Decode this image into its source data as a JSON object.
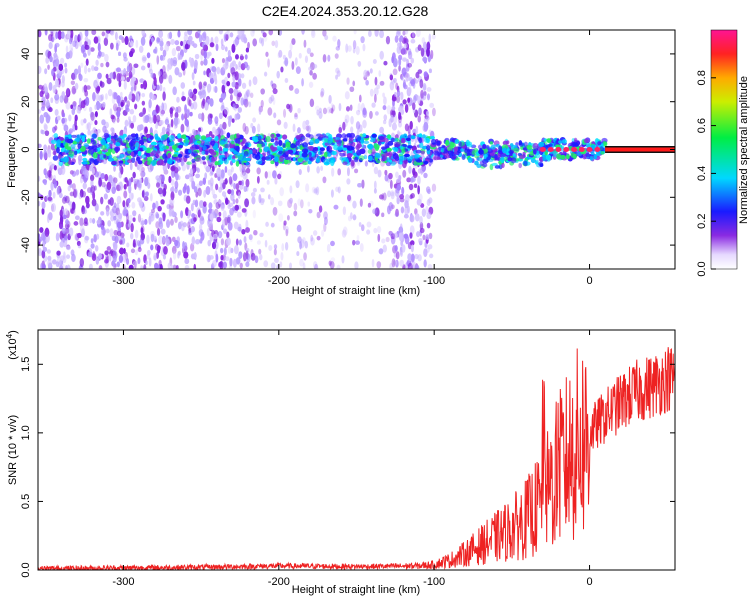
{
  "chart_title": "C2E4.2024.353.20.12.G28",
  "chart_data": [
    {
      "type": "heatmap",
      "title": "C2E4.2024.353.20.12.G28",
      "xlabel": "Height of straight line (km)",
      "ylabel": "Frequency (Hz)",
      "xlim": [
        -355,
        55
      ],
      "ylim": [
        -50,
        50
      ],
      "x_ticks": [
        "-300",
        "-200",
        "-100",
        "0"
      ],
      "x_tick_values": [
        -300,
        -200,
        -100,
        0
      ],
      "y_ticks": [
        "-40",
        "-20",
        "0",
        "20",
        "40"
      ],
      "y_tick_values": [
        -40,
        -20,
        0,
        20,
        40
      ],
      "colorbar": {
        "label": "Normalized spectral amplitude",
        "ticks": [
          "0.0",
          "0.2",
          "0.4",
          "0.6",
          "0.8"
        ],
        "tick_values": [
          0,
          0.2,
          0.4,
          0.6,
          0.8
        ],
        "range": [
          0,
          1
        ]
      },
      "features": {
        "dense_noise_regions_km": [
          [
            -355,
            -218
          ],
          [
            -128,
            -102
          ]
        ],
        "sparse_noise_regions_km": [
          [
            -218,
            -128
          ]
        ],
        "signal_center_frequency_hz": 0,
        "saturated_line_start_km": 10
      }
    },
    {
      "type": "line",
      "xlabel": "Height of straight line (km)",
      "ylabel": "SNR (10 * v/v)",
      "y_multiplier": "(x10",
      "y_multiplier_exp": "4",
      "xlim": [
        -355,
        55
      ],
      "ylim": [
        0,
        1.75
      ],
      "x_ticks": [
        "-300",
        "-200",
        "-100",
        "0"
      ],
      "x_tick_values": [
        -300,
        -200,
        -100,
        0
      ],
      "y_ticks": [
        "0.0",
        "0.5",
        "1.0",
        "1.5"
      ],
      "y_tick_values": [
        0,
        0.5,
        1.0,
        1.5
      ],
      "color": "#ee2222",
      "x": [
        -355,
        -300,
        -250,
        -200,
        -150,
        -110,
        -100,
        -90,
        -80,
        -70,
        -60,
        -50,
        -40,
        -30,
        -25,
        -20,
        -10,
        0,
        10,
        20,
        30,
        40,
        50,
        55
      ],
      "y": [
        0.01,
        0.015,
        0.02,
        0.03,
        0.025,
        0.03,
        0.04,
        0.07,
        0.12,
        0.18,
        0.24,
        0.3,
        0.38,
        0.5,
        0.62,
        0.72,
        0.88,
        1.0,
        1.12,
        1.22,
        1.3,
        1.34,
        1.4,
        1.4
      ]
    }
  ]
}
